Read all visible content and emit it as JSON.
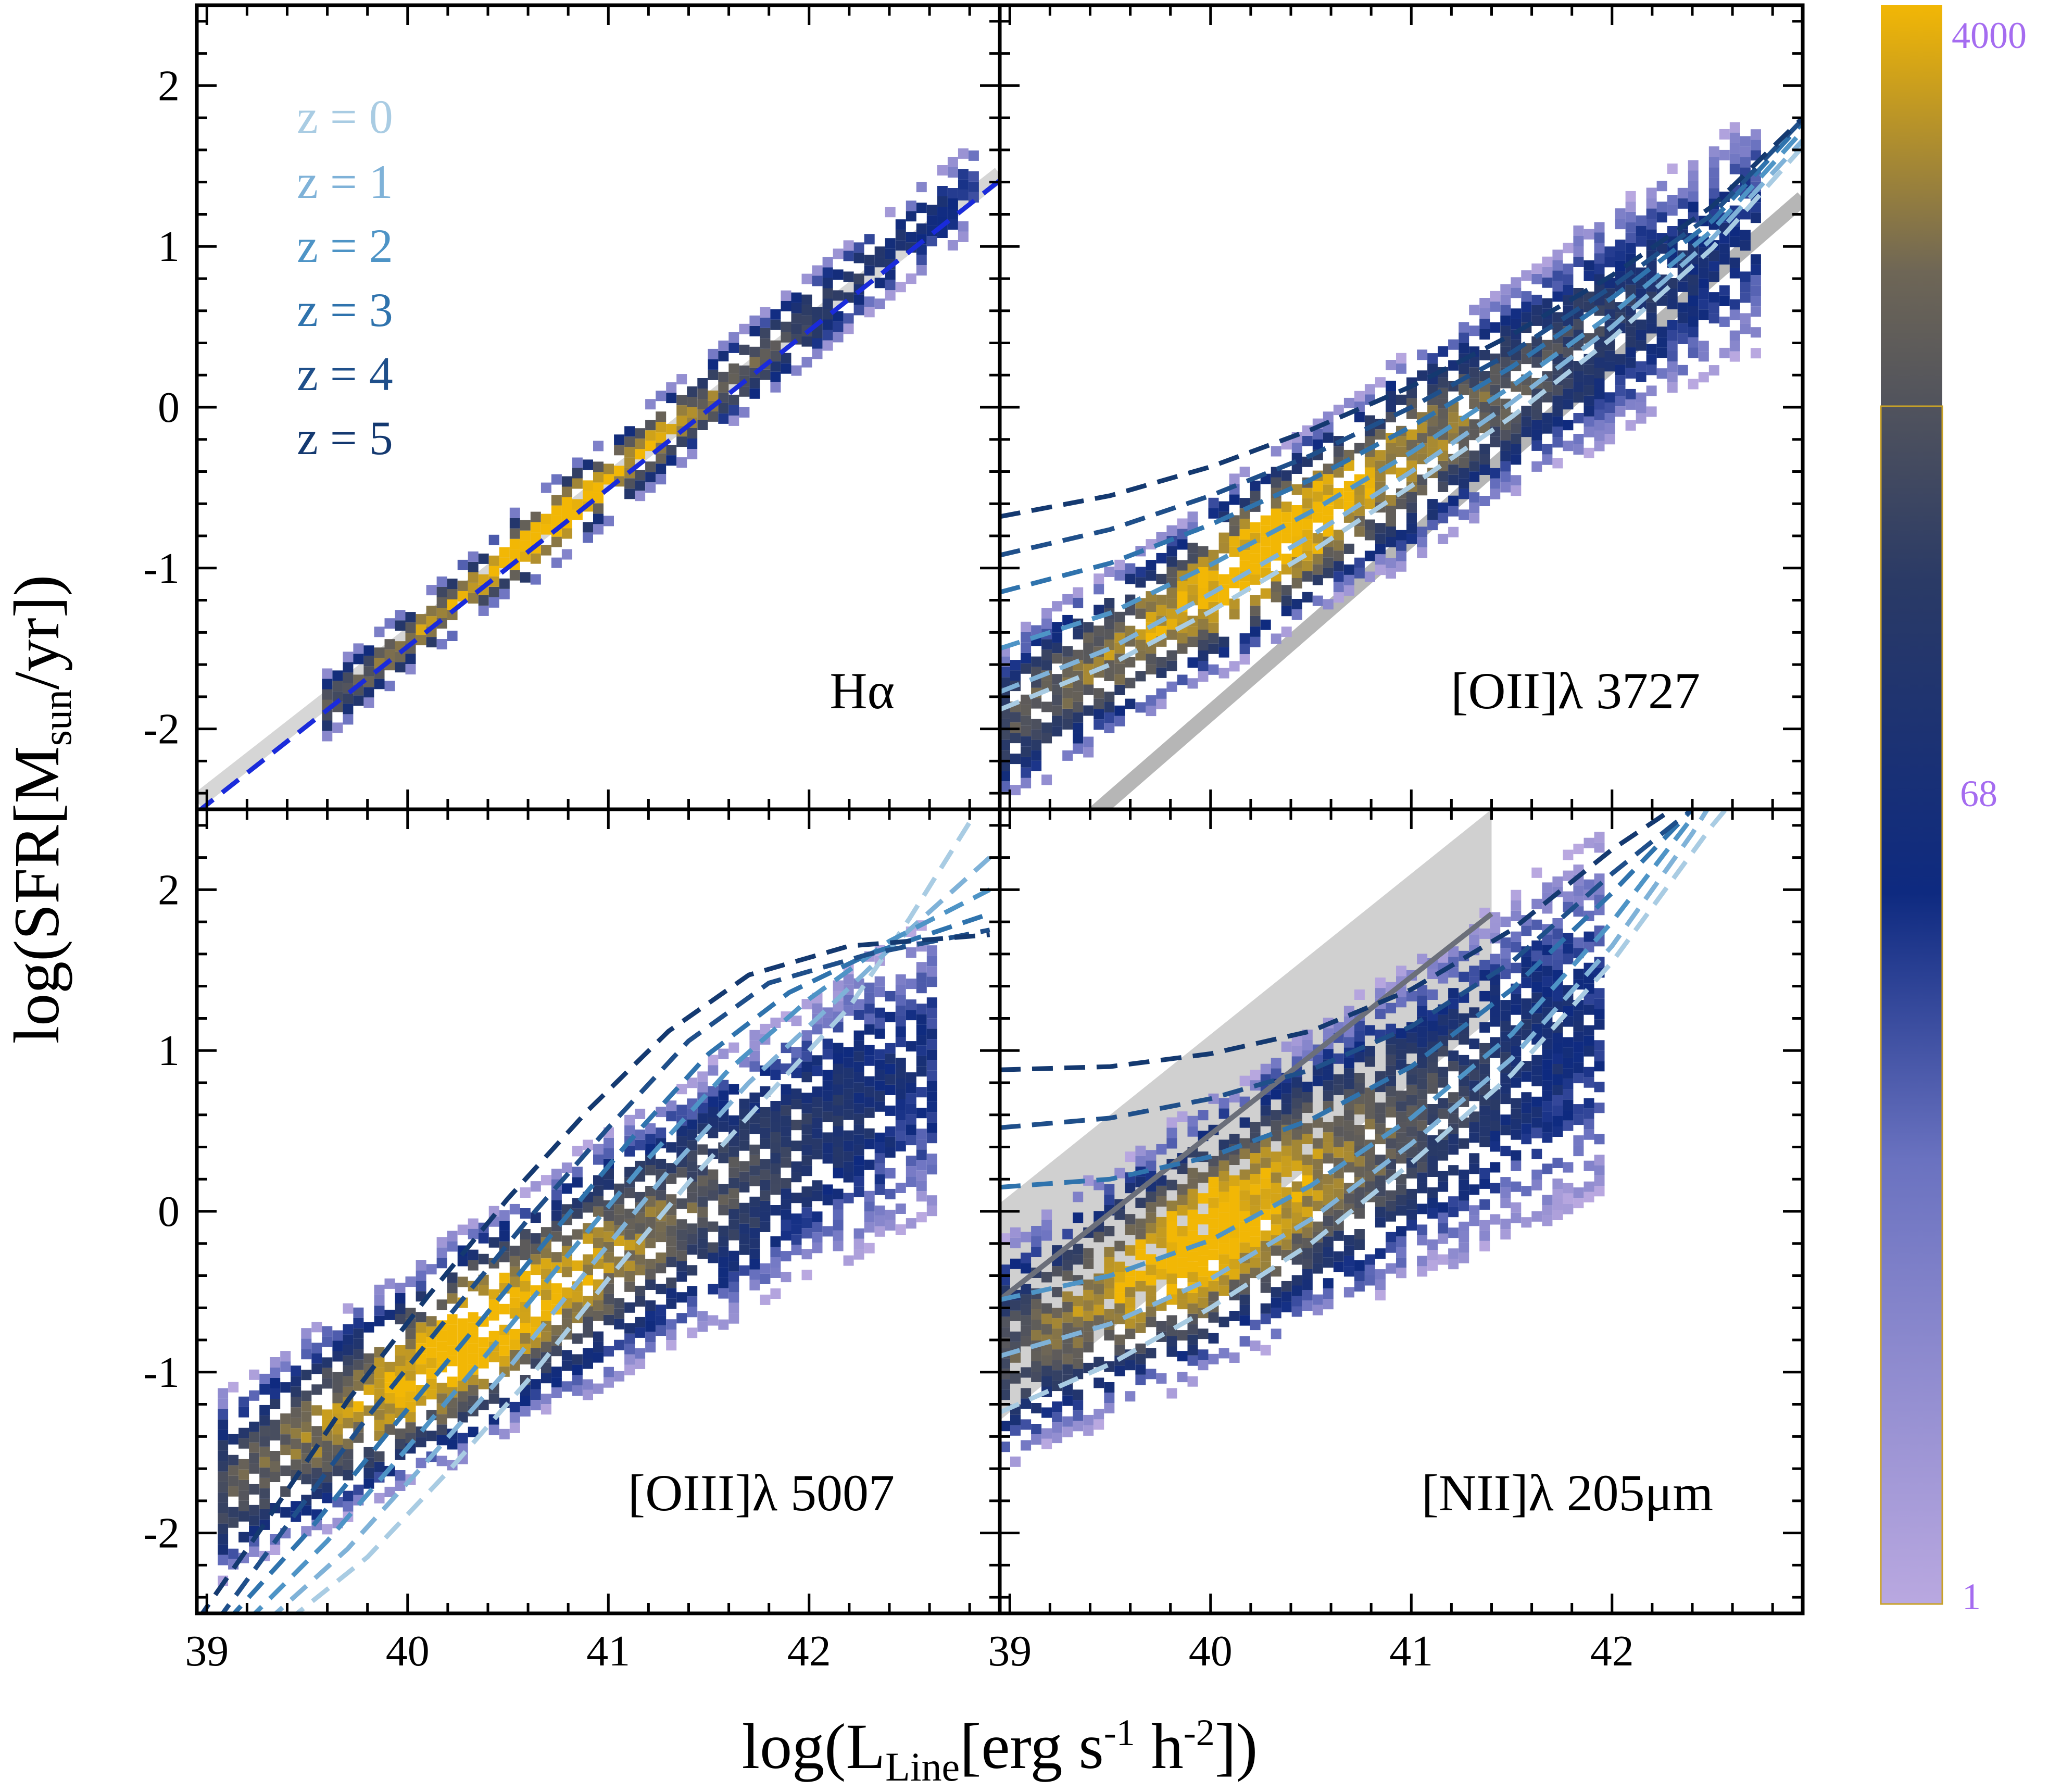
{
  "chart_data": {
    "type": "heatmap",
    "layout": "2x2 panels with shared axes",
    "xlabel": "log(L_Line[erg s^-1 h^-2])",
    "xlabel_parts": {
      "main": "log(L",
      "sub": "Line",
      "rest": "[erg s",
      "sup1": "-1",
      "mid": " h",
      "sup2": "-2",
      "end": "])"
    },
    "ylabel": "log(SFR[M_sun/yr])",
    "ylabel_parts": {
      "main": "log(SFR[M",
      "sub": "sun",
      "end": "/yr])"
    },
    "xlim": [
      38.95,
      42.95
    ],
    "ylim": [
      -2.5,
      2.5
    ],
    "x_ticks": [
      "39",
      "40",
      "41",
      "42"
    ],
    "x_tick_values": [
      39,
      40,
      41,
      42
    ],
    "y_ticks": [
      "2",
      "1",
      "0",
      "-1",
      "-2"
    ],
    "y_tick_values": [
      2,
      1,
      0,
      -1,
      -2
    ],
    "legend": {
      "entries": [
        "z = 0",
        "z = 1",
        "z = 2",
        "z = 3",
        "z = 4",
        "z = 5"
      ],
      "colors": [
        "#a9cce3",
        "#7fb2d8",
        "#4e94c6",
        "#2f73ad",
        "#1f4f8a",
        "#143970"
      ]
    },
    "colorbar": {
      "scale": "log",
      "range": [
        1,
        4000
      ],
      "labels": [
        "4000",
        "68",
        "1"
      ],
      "label_values": [
        4000,
        68,
        1
      ],
      "gradient_stops": [
        {
          "value": 1,
          "color": "#b9a8e0"
        },
        {
          "value": 10,
          "color": "#6a72c0"
        },
        {
          "value": 40,
          "color": "#0e2a80"
        },
        {
          "value": 200,
          "color": "#2a3a66"
        },
        {
          "value": 1000,
          "color": "#6e6656"
        },
        {
          "value": 4000,
          "color": "#f2b705"
        }
      ]
    },
    "panels": [
      {
        "label": "Hα",
        "position": "top-left",
        "relation_slope": [
          {
            "z": 0,
            "slope": 1.0
          },
          {
            "z": 5,
            "slope": 1.0
          }
        ],
        "redshift_relations": [
          {
            "z": 0,
            "color": "#1a2bdb",
            "points": [
              [
                38.95,
                -2.52
              ],
              [
                42.95,
                1.41
              ]
            ]
          }
        ],
        "reference_band": {
          "points": [
            [
              38.95,
              -2.45
            ],
            [
              42.95,
              1.45
            ]
          ],
          "color": "#c8c8c8"
        },
        "density_ridge": {
          "x": [
            39.6,
            42.8
          ],
          "y": [
            -1.85,
            1.35
          ],
          "scatter": 0.05
        }
      },
      {
        "label": "[OII]λ 3727",
        "position": "top-right",
        "redshift_relations": [
          {
            "z": 0,
            "color": "#a9cce3",
            "points": [
              [
                38.95,
                -1.88
              ],
              [
                39.5,
                -1.6
              ],
              [
                40.0,
                -1.27
              ],
              [
                40.5,
                -0.9
              ],
              [
                41.0,
                -0.49
              ],
              [
                41.5,
                -0.06
              ],
              [
                42.0,
                0.43
              ],
              [
                42.5,
                0.99
              ],
              [
                42.95,
                1.62
              ]
            ]
          },
          {
            "z": 1,
            "color": "#7fb2d8",
            "points": [
              [
                38.95,
                -1.77
              ],
              [
                39.5,
                -1.5
              ],
              [
                40.0,
                -1.16
              ],
              [
                40.5,
                -0.8
              ],
              [
                41.0,
                -0.4
              ],
              [
                41.5,
                0.03
              ],
              [
                42.0,
                0.5
              ],
              [
                42.5,
                1.05
              ],
              [
                42.95,
                1.66
              ]
            ]
          },
          {
            "z": 2,
            "color": "#4e94c6",
            "points": [
              [
                38.95,
                -1.5
              ],
              [
                39.5,
                -1.28
              ],
              [
                40.0,
                -0.98
              ],
              [
                40.5,
                -0.65
              ],
              [
                41.0,
                -0.28
              ],
              [
                41.5,
                0.13
              ],
              [
                42.0,
                0.58
              ],
              [
                42.5,
                1.1
              ],
              [
                42.95,
                1.72
              ]
            ]
          },
          {
            "z": 3,
            "color": "#2f73ad",
            "points": [
              [
                38.95,
                -1.15
              ],
              [
                39.5,
                -0.97
              ],
              [
                40.0,
                -0.73
              ],
              [
                40.5,
                -0.45
              ],
              [
                41.0,
                -0.12
              ],
              [
                41.5,
                0.25
              ],
              [
                42.0,
                0.68
              ],
              [
                42.5,
                1.16
              ],
              [
                42.95,
                1.77
              ]
            ]
          },
          {
            "z": 4,
            "color": "#1f4f8a",
            "points": [
              [
                38.95,
                -0.92
              ],
              [
                39.5,
                -0.76
              ],
              [
                40.0,
                -0.55
              ],
              [
                40.5,
                -0.3
              ],
              [
                41.0,
                0.0
              ],
              [
                41.5,
                0.34
              ],
              [
                42.0,
                0.75
              ],
              [
                42.5,
                1.2
              ],
              [
                42.95,
                1.79
              ]
            ]
          },
          {
            "z": 5,
            "color": "#143970",
            "points": [
              [
                38.95,
                -0.68
              ],
              [
                39.5,
                -0.55
              ],
              [
                40.0,
                -0.37
              ],
              [
                40.5,
                -0.14
              ],
              [
                41.0,
                0.13
              ],
              [
                41.5,
                0.45
              ],
              [
                42.0,
                0.82
              ],
              [
                42.5,
                1.25
              ],
              [
                42.95,
                1.8
              ]
            ]
          }
        ],
        "reference_band": {
          "points": [
            [
              39.4,
              -2.55
            ],
            [
              42.95,
              1.3
            ]
          ],
          "color": "#9e9e9e"
        },
        "density_ridge": {
          "x": [
            39.0,
            42.7
          ],
          "y": [
            -1.95,
            1.1
          ],
          "scatter": 0.22
        }
      },
      {
        "label": "[OIII]λ 5007",
        "position": "bottom-left",
        "redshift_relations": [
          {
            "z": 0,
            "color": "#a9cce3",
            "points": [
              [
                39.4,
                -2.55
              ],
              [
                39.8,
                -2.15
              ],
              [
                40.2,
                -1.62
              ],
              [
                40.6,
                -1.05
              ],
              [
                41.0,
                -0.42
              ],
              [
                41.4,
                0.18
              ],
              [
                41.8,
                0.73
              ],
              [
                42.2,
                1.27
              ],
              [
                42.5,
                1.82
              ],
              [
                42.8,
                2.42
              ]
            ]
          },
          {
            "z": 1,
            "color": "#7fb2d8",
            "points": [
              [
                39.3,
                -2.55
              ],
              [
                39.7,
                -2.1
              ],
              [
                40.1,
                -1.55
              ],
              [
                40.5,
                -0.98
              ],
              [
                40.9,
                -0.36
              ],
              [
                41.3,
                0.25
              ],
              [
                41.7,
                0.8
              ],
              [
                42.1,
                1.27
              ],
              [
                42.5,
                1.75
              ],
              [
                42.9,
                2.2
              ]
            ]
          },
          {
            "z": 2,
            "color": "#4e94c6",
            "points": [
              [
                39.2,
                -2.55
              ],
              [
                39.6,
                -2.05
              ],
              [
                40.0,
                -1.47
              ],
              [
                40.4,
                -0.88
              ],
              [
                40.8,
                -0.27
              ],
              [
                41.2,
                0.33
              ],
              [
                41.6,
                0.88
              ],
              [
                42.0,
                1.32
              ],
              [
                42.4,
                1.68
              ],
              [
                42.9,
                2.0
              ]
            ]
          },
          {
            "z": 3,
            "color": "#2f73ad",
            "points": [
              [
                39.1,
                -2.55
              ],
              [
                39.5,
                -2.0
              ],
              [
                39.9,
                -1.38
              ],
              [
                40.3,
                -0.78
              ],
              [
                40.7,
                -0.17
              ],
              [
                41.1,
                0.43
              ],
              [
                41.5,
                0.98
              ],
              [
                41.9,
                1.36
              ],
              [
                42.3,
                1.6
              ],
              [
                42.9,
                1.85
              ]
            ]
          },
          {
            "z": 4,
            "color": "#1f4f8a",
            "points": [
              [
                39.05,
                -2.55
              ],
              [
                39.4,
                -1.95
              ],
              [
                39.8,
                -1.28
              ],
              [
                40.2,
                -0.66
              ],
              [
                40.6,
                -0.05
              ],
              [
                41.0,
                0.52
              ],
              [
                41.4,
                1.06
              ],
              [
                41.8,
                1.42
              ],
              [
                42.3,
                1.6
              ],
              [
                42.9,
                1.75
              ]
            ]
          },
          {
            "z": 5,
            "color": "#143970",
            "points": [
              [
                38.95,
                -2.55
              ],
              [
                39.3,
                -1.92
              ],
              [
                39.7,
                -1.18
              ],
              [
                40.1,
                -0.53
              ],
              [
                40.5,
                0.08
              ],
              [
                40.9,
                0.63
              ],
              [
                41.3,
                1.12
              ],
              [
                41.7,
                1.47
              ],
              [
                42.2,
                1.65
              ],
              [
                42.9,
                1.72
              ]
            ]
          }
        ],
        "density_ridge": {
          "x": [
            39.1,
            42.6
          ],
          "y": [
            -1.7,
            0.9
          ],
          "scatter": 0.28
        }
      },
      {
        "label": "[NII]λ 205μm",
        "position": "bottom-right",
        "redshift_relations": [
          {
            "z": 0,
            "color": "#a9cce3",
            "points": [
              [
                38.95,
                -1.25
              ],
              [
                39.5,
                -0.95
              ],
              [
                40.0,
                -0.6
              ],
              [
                40.5,
                -0.2
              ],
              [
                41.0,
                0.3
              ],
              [
                41.5,
                0.85
              ],
              [
                42.0,
                1.55
              ],
              [
                42.5,
                2.4
              ],
              [
                42.6,
                2.55
              ]
            ]
          },
          {
            "z": 1,
            "color": "#7fb2d8",
            "points": [
              [
                38.95,
                -0.9
              ],
              [
                39.5,
                -0.7
              ],
              [
                40.0,
                -0.42
              ],
              [
                40.5,
                -0.05
              ],
              [
                41.0,
                0.42
              ],
              [
                41.5,
                0.95
              ],
              [
                42.0,
                1.65
              ],
              [
                42.4,
                2.35
              ],
              [
                42.5,
                2.55
              ]
            ]
          },
          {
            "z": 2,
            "color": "#4e94c6",
            "points": [
              [
                38.95,
                -0.55
              ],
              [
                39.5,
                -0.4
              ],
              [
                40.0,
                -0.18
              ],
              [
                40.5,
                0.16
              ],
              [
                41.0,
                0.58
              ],
              [
                41.5,
                1.1
              ],
              [
                42.0,
                1.8
              ],
              [
                42.4,
                2.45
              ]
            ]
          },
          {
            "z": 3,
            "color": "#2f73ad",
            "points": [
              [
                38.95,
                0.15
              ],
              [
                39.5,
                0.2
              ],
              [
                40.0,
                0.34
              ],
              [
                40.5,
                0.57
              ],
              [
                41.0,
                0.9
              ],
              [
                41.5,
                1.38
              ],
              [
                42.0,
                1.98
              ],
              [
                42.4,
                2.5
              ]
            ]
          },
          {
            "z": 4,
            "color": "#1f4f8a",
            "points": [
              [
                38.95,
                0.52
              ],
              [
                39.5,
                0.58
              ],
              [
                40.0,
                0.7
              ],
              [
                40.5,
                0.88
              ],
              [
                41.0,
                1.15
              ],
              [
                41.5,
                1.55
              ],
              [
                42.0,
                2.1
              ],
              [
                42.4,
                2.5
              ]
            ]
          },
          {
            "z": 5,
            "color": "#143970",
            "points": [
              [
                38.95,
                0.88
              ],
              [
                39.5,
                0.9
              ],
              [
                40.0,
                0.98
              ],
              [
                40.5,
                1.12
              ],
              [
                41.0,
                1.38
              ],
              [
                41.5,
                1.75
              ],
              [
                42.0,
                2.25
              ],
              [
                42.3,
                2.5
              ]
            ]
          }
        ],
        "reference_band": {
          "polygon": [
            [
              38.95,
              0.05
            ],
            [
              41.4,
              2.5
            ],
            [
              41.4,
              1.2
            ],
            [
              38.95,
              -1.3
            ]
          ],
          "line": [
            [
              38.95,
              -0.55
            ],
            [
              41.4,
              1.85
            ]
          ],
          "color": "#c8c8c8",
          "line_color": "#6b6f7a"
        },
        "density_ridge": {
          "x": [
            38.95,
            41.9
          ],
          "y": [
            -0.9,
            1.2
          ],
          "scatter": 0.35
        }
      }
    ]
  }
}
